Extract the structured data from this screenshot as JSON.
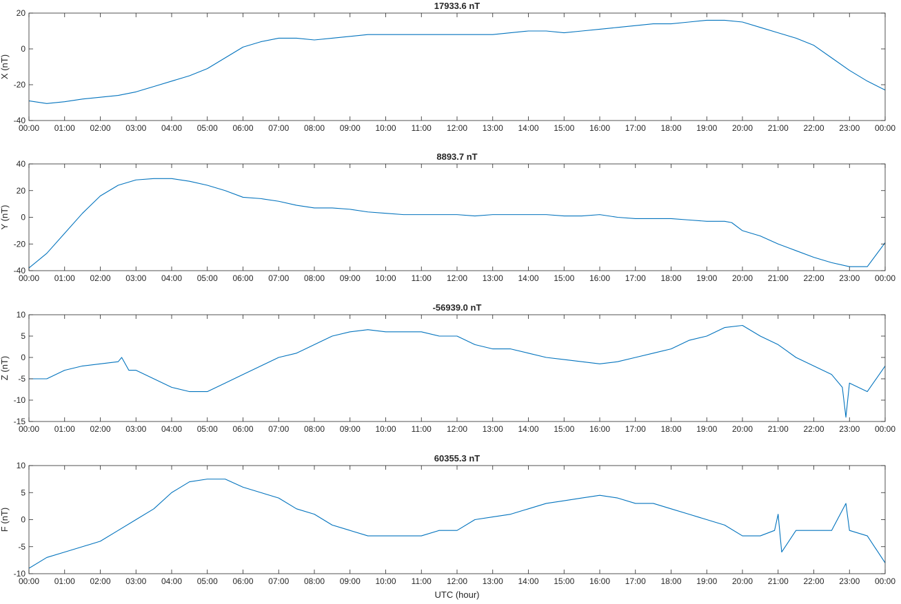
{
  "figure": {
    "xlabel": "UTC (hour)",
    "line_color": "#0072bd",
    "axis_color": "#262626"
  },
  "chart_data": [
    {
      "type": "line",
      "title": "17933.6 nT",
      "ylabel": "X (nT)",
      "xlabel": "",
      "xlim": [
        0,
        24
      ],
      "ylim": [
        -40,
        20
      ],
      "yticks": [
        -40,
        -20,
        0,
        20
      ],
      "xtick_labels": [
        "00:00",
        "01:00",
        "02:00",
        "03:00",
        "04:00",
        "05:00",
        "06:00",
        "07:00",
        "08:00",
        "09:00",
        "10:00",
        "11:00",
        "12:00",
        "13:00",
        "14:00",
        "15:00",
        "16:00",
        "17:00",
        "18:00",
        "19:00",
        "20:00",
        "21:00",
        "22:00",
        "23:00",
        "00:00"
      ],
      "grid": false,
      "series": [
        {
          "color": "#0072bd",
          "x": [
            0,
            0.5,
            1,
            1.5,
            2,
            2.5,
            3,
            3.5,
            4,
            4.5,
            5,
            5.5,
            6,
            6.5,
            7,
            7.5,
            8,
            8.5,
            9,
            9.5,
            10,
            10.5,
            11,
            11.5,
            12,
            12.5,
            13,
            13.5,
            14,
            14.5,
            15,
            15.5,
            16,
            16.5,
            17,
            17.5,
            18,
            18.5,
            19,
            19.5,
            20,
            20.5,
            21,
            21.5,
            22,
            22.5,
            23,
            23.5,
            24
          ],
          "y": [
            -29,
            -30.5,
            -29.5,
            -28,
            -27,
            -26,
            -24,
            -21,
            -18,
            -15,
            -11,
            -5,
            1,
            4,
            6,
            6,
            5,
            6,
            7,
            8,
            8,
            8,
            8,
            8,
            8,
            8,
            8,
            9,
            10,
            10,
            9,
            10,
            11,
            12,
            13,
            14,
            14,
            15,
            16,
            16,
            15,
            12,
            9,
            6,
            2,
            -5,
            -12,
            -18,
            -23
          ]
        }
      ]
    },
    {
      "type": "line",
      "title": "8893.7 nT",
      "ylabel": "Y (nT)",
      "xlabel": "",
      "xlim": [
        0,
        24
      ],
      "ylim": [
        -40,
        40
      ],
      "yticks": [
        -40,
        -20,
        0,
        20,
        40
      ],
      "xtick_labels": [
        "00:00",
        "01:00",
        "02:00",
        "03:00",
        "04:00",
        "05:00",
        "06:00",
        "07:00",
        "08:00",
        "09:00",
        "10:00",
        "11:00",
        "12:00",
        "13:00",
        "14:00",
        "15:00",
        "16:00",
        "17:00",
        "18:00",
        "19:00",
        "20:00",
        "21:00",
        "22:00",
        "23:00",
        "00:00"
      ],
      "grid": false,
      "series": [
        {
          "color": "#0072bd",
          "x": [
            0,
            0.5,
            1,
            1.5,
            2,
            2.5,
            3,
            3.5,
            4,
            4.5,
            5,
            5.5,
            6,
            6.5,
            7,
            7.5,
            8,
            8.5,
            9,
            9.5,
            10,
            10.5,
            11,
            11.5,
            12,
            12.5,
            13,
            13.5,
            14,
            14.5,
            15,
            15.5,
            16,
            16.5,
            17,
            17.5,
            18,
            18.5,
            19,
            19.5,
            19.7,
            20,
            20.5,
            21,
            21.5,
            22,
            22.5,
            23,
            23.5,
            24
          ],
          "y": [
            -38,
            -27,
            -12,
            3,
            16,
            24,
            28,
            29,
            29,
            27,
            24,
            20,
            15,
            14,
            12,
            9,
            7,
            7,
            6,
            4,
            3,
            2,
            2,
            2,
            2,
            1,
            2,
            2,
            2,
            2,
            1,
            1,
            2,
            0,
            -1,
            -1,
            -1,
            -2,
            -3,
            -3,
            -4,
            -10,
            -14,
            -20,
            -25,
            -30,
            -34,
            -37,
            -37,
            -19
          ]
        }
      ]
    },
    {
      "type": "line",
      "title": "-56939.0 nT",
      "ylabel": "Z (nT)",
      "xlabel": "",
      "xlim": [
        0,
        24
      ],
      "ylim": [
        -15,
        10
      ],
      "yticks": [
        -15,
        -10,
        -5,
        0,
        5,
        10
      ],
      "xtick_labels": [
        "00:00",
        "01:00",
        "02:00",
        "03:00",
        "04:00",
        "05:00",
        "06:00",
        "07:00",
        "08:00",
        "09:00",
        "10:00",
        "11:00",
        "12:00",
        "13:00",
        "14:00",
        "15:00",
        "16:00",
        "17:00",
        "18:00",
        "19:00",
        "20:00",
        "21:00",
        "22:00",
        "23:00",
        "00:00"
      ],
      "grid": false,
      "series": [
        {
          "color": "#0072bd",
          "x": [
            0,
            0.5,
            1,
            1.5,
            2,
            2.5,
            2.6,
            2.8,
            3,
            3.5,
            4,
            4.5,
            5,
            5.5,
            6,
            6.5,
            7,
            7.5,
            8,
            8.5,
            9,
            9.5,
            10,
            10.5,
            11,
            11.5,
            12,
            12.5,
            13,
            13.5,
            14,
            14.5,
            15,
            15.5,
            16,
            16.5,
            17,
            17.5,
            18,
            18.5,
            19,
            19.5,
            20,
            20.5,
            21,
            21.5,
            22,
            22.5,
            22.8,
            22.9,
            23,
            23.5,
            24
          ],
          "y": [
            -5,
            -5,
            -3,
            -2,
            -1.5,
            -1,
            0,
            -3,
            -3,
            -5,
            -7,
            -8,
            -8,
            -6,
            -4,
            -2,
            0,
            1,
            3,
            5,
            6,
            6.5,
            6,
            6,
            6,
            5,
            5,
            3,
            2,
            2,
            1,
            0,
            -0.5,
            -1,
            -1.5,
            -1,
            0,
            1,
            2,
            4,
            5,
            7,
            7.5,
            5,
            3,
            0,
            -2,
            -4,
            -7,
            -14,
            -6,
            -8,
            -2
          ]
        }
      ]
    },
    {
      "type": "line",
      "title": "60355.3 nT",
      "ylabel": "F (nT)",
      "xlabel": "UTC (hour)",
      "xlim": [
        0,
        24
      ],
      "ylim": [
        -10,
        10
      ],
      "yticks": [
        -10,
        -5,
        0,
        5,
        10
      ],
      "xtick_labels": [
        "00:00",
        "01:00",
        "02:00",
        "03:00",
        "04:00",
        "05:00",
        "06:00",
        "07:00",
        "08:00",
        "09:00",
        "10:00",
        "11:00",
        "12:00",
        "13:00",
        "14:00",
        "15:00",
        "16:00",
        "17:00",
        "18:00",
        "19:00",
        "20:00",
        "21:00",
        "22:00",
        "23:00",
        "00:00"
      ],
      "grid": false,
      "series": [
        {
          "color": "#0072bd",
          "x": [
            0,
            0.5,
            1,
            1.5,
            2,
            2.5,
            3,
            3.5,
            4,
            4.5,
            5,
            5.5,
            6,
            6.5,
            7,
            7.5,
            8,
            8.5,
            9,
            9.5,
            10,
            10.5,
            11,
            11.5,
            12,
            12.5,
            13,
            13.5,
            14,
            14.5,
            15,
            15.5,
            16,
            16.5,
            17,
            17.5,
            18,
            18.5,
            19,
            19.5,
            20,
            20.5,
            20.9,
            21,
            21.1,
            21.5,
            22,
            22.5,
            22.9,
            23,
            23.5,
            24
          ],
          "y": [
            -9,
            -7,
            -6,
            -5,
            -4,
            -2,
            0,
            2,
            5,
            7,
            7.5,
            7.5,
            6,
            5,
            4,
            2,
            1,
            -1,
            -2,
            -3,
            -3,
            -3,
            -3,
            -2,
            -2,
            0,
            0.5,
            1,
            2,
            3,
            3.5,
            4,
            4.5,
            4,
            3,
            3,
            2,
            1,
            0,
            -1,
            -3,
            -3,
            -2,
            1,
            -6,
            -2,
            -2,
            -2,
            3,
            -2,
            -3,
            -8
          ]
        }
      ]
    }
  ]
}
